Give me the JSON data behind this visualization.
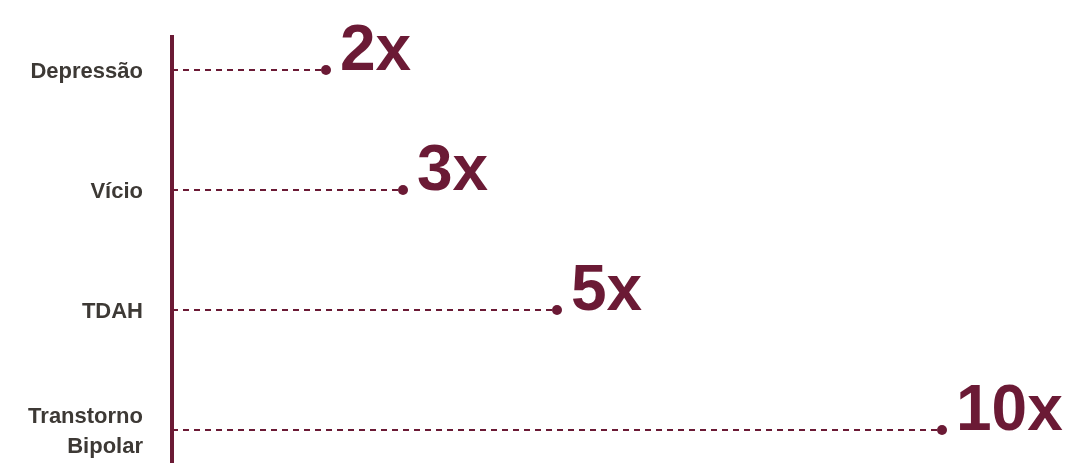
{
  "chart_data": {
    "type": "lollipop",
    "orientation": "horizontal",
    "categories": [
      "Depressão",
      "Vício",
      "TDAH",
      "Transtorno Bipolar"
    ],
    "values": [
      2,
      3,
      5,
      10
    ],
    "value_labels": [
      "2x",
      "3x",
      "5x",
      "10x"
    ],
    "color": "#6b1a35",
    "line_style": "dashed",
    "marker": "circle"
  }
}
